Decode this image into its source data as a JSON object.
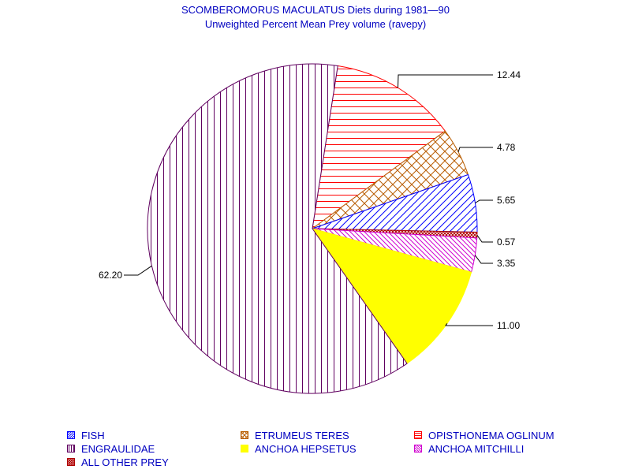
{
  "chart_data": {
    "type": "pie",
    "title": "SCOMBEROMORUS MACULATUS Diets during 1981—90",
    "subtitle": "Unweighted Percent Mean Prey volume (ravepy)",
    "slices": [
      {
        "name": "OPISTHONEMA OGLINUM",
        "value": 12.44,
        "label": "12.44",
        "color": "#ff0000",
        "pattern": "horizontal-lines"
      },
      {
        "name": "ETRUMEUS TERES",
        "value": 4.78,
        "label": "4.78",
        "color": "#b85c00",
        "pattern": "crosshatch"
      },
      {
        "name": "FISH",
        "value": 5.65,
        "label": "5.65",
        "color": "#0000ff",
        "pattern": "diagonal-lines"
      },
      {
        "name": "ALL OTHER PREY",
        "value": 0.57,
        "label": "0.57",
        "color": "#b00000",
        "pattern": "dense-crosshatch"
      },
      {
        "name": "ANCHOA MITCHILLI",
        "value": 3.35,
        "label": "3.35",
        "color": "#d000d0",
        "pattern": "back-diagonal-lines"
      },
      {
        "name": "ANCHOA HEPSETUS",
        "value": 11.0,
        "label": "11.00",
        "color": "#ffff00",
        "pattern": "solid"
      },
      {
        "name": "ENGRAULIDAE",
        "value": 62.2,
        "label": "62.20",
        "color": "#600060",
        "pattern": "vertical-lines"
      }
    ],
    "legend_placement": "bottom"
  },
  "legend": [
    {
      "label": "FISH",
      "color": "#0000ff",
      "pattern": "diagonal-lines"
    },
    {
      "label": "ETRUMEUS TERES",
      "color": "#b85c00",
      "pattern": "crosshatch"
    },
    {
      "label": "OPISTHONEMA OGLINUM",
      "color": "#ff0000",
      "pattern": "horizontal-lines"
    },
    {
      "label": "ENGRAULIDAE",
      "color": "#600060",
      "pattern": "vertical-lines"
    },
    {
      "label": "ANCHOA HEPSETUS",
      "color": "#ffff00",
      "pattern": "solid"
    },
    {
      "label": "ANCHOA MITCHILLI",
      "color": "#d000d0",
      "pattern": "back-diagonal-lines"
    },
    {
      "label": "ALL OTHER PREY",
      "color": "#b00000",
      "pattern": "dense-crosshatch"
    }
  ]
}
